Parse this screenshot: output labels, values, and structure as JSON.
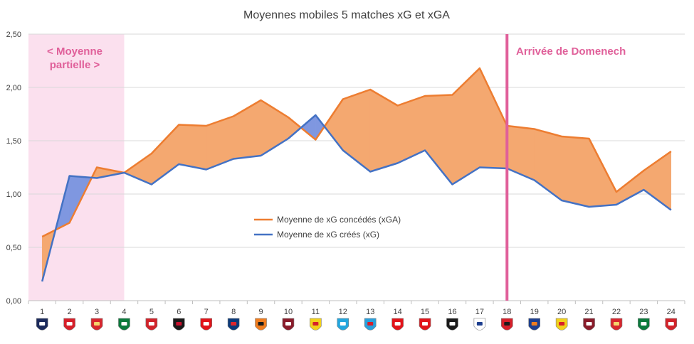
{
  "chart_data": {
    "type": "line",
    "title": "Moyennes mobiles 5 matches xG et xGA",
    "xlabel": "",
    "ylabel": "",
    "x": [
      1,
      2,
      3,
      4,
      5,
      6,
      7,
      8,
      9,
      10,
      11,
      12,
      13,
      14,
      15,
      16,
      17,
      18,
      19,
      20,
      21,
      22,
      23,
      24
    ],
    "ylim": [
      0,
      2.5
    ],
    "yticks": [
      "0,00",
      "0,50",
      "1,00",
      "1,50",
      "2,00",
      "2,50"
    ],
    "grid": true,
    "legend_position": "center",
    "series": [
      {
        "name": "Moyenne de xG concédés (xGA)",
        "color": "#ed7d31",
        "values": [
          0.6,
          0.73,
          1.25,
          1.2,
          1.38,
          1.65,
          1.64,
          1.73,
          1.88,
          1.72,
          1.51,
          1.89,
          1.98,
          1.83,
          1.92,
          1.93,
          2.18,
          1.64,
          1.61,
          1.54,
          1.52,
          1.02,
          1.22,
          1.4
        ]
      },
      {
        "name": "Moyenne de xG créés (xG)",
        "color": "#4472c4",
        "values": [
          0.18,
          1.17,
          1.15,
          1.2,
          1.09,
          1.28,
          1.23,
          1.33,
          1.36,
          1.52,
          1.74,
          1.41,
          1.21,
          1.29,
          1.41,
          1.09,
          1.25,
          1.24,
          1.13,
          0.94,
          0.88,
          0.9,
          1.04,
          0.85
        ]
      }
    ],
    "fill_colors": {
      "xga_above": "#f4a870",
      "xg_above": "#7f97e0"
    },
    "annotations": [
      {
        "text_lines": [
          "< Moyenne",
          "partielle >"
        ],
        "color": "#e0609a",
        "shaded_from_x": 1,
        "shaded_to_x": 4,
        "shade_color": "#fbe0ee"
      },
      {
        "text_lines": [
          "Arrivée de Domenech"
        ],
        "color": "#e0609a",
        "vertical_line_at_x": 18
      }
    ],
    "x_tick_icons": [
      "bordeaux-crest",
      "nimes-crest",
      "monaco-crest",
      "saint-etienne-crest",
      "lille-crest",
      "nice-crest",
      "brest-crest",
      "psg-crest",
      "lorient-crest",
      "metz-crest",
      "lens-crest",
      "marseille-crest",
      "strasbourg-crest",
      "dijon-crest",
      "reims-crest",
      "angers-crest",
      "lyon-crest",
      "rennes-crest",
      "montpellier-crest",
      "lens-crest",
      "metz-crest",
      "monaco-crest",
      "saint-etienne-crest",
      "lille-crest"
    ]
  }
}
